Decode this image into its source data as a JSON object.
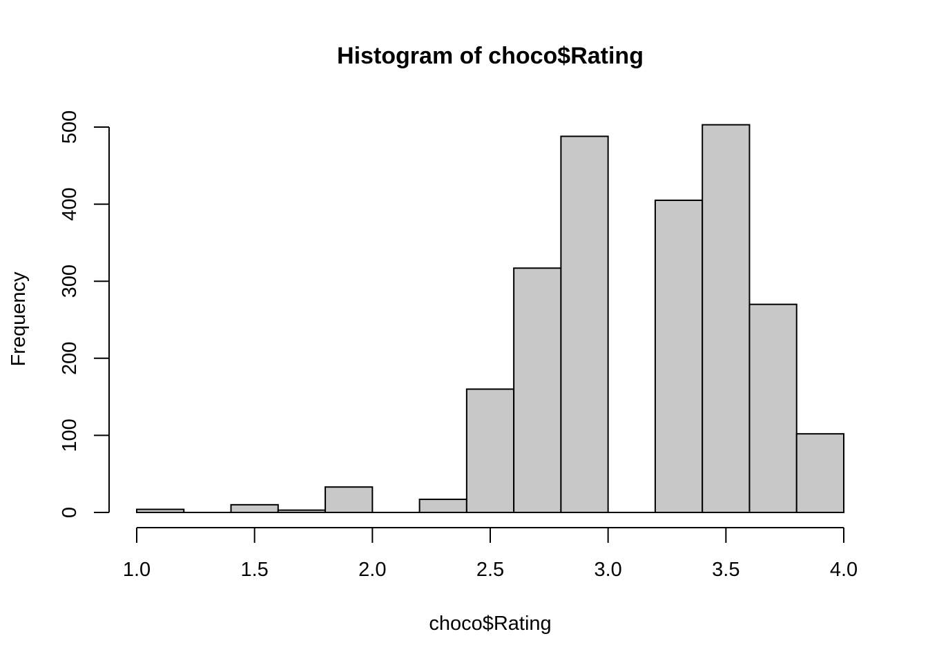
{
  "chart_data": {
    "type": "bar",
    "title": "Histogram of choco$Rating",
    "xlabel": "choco$Rating",
    "ylabel": "Frequency",
    "bins": [
      {
        "start": 1.0,
        "end": 1.2,
        "count": 4
      },
      {
        "start": 1.2,
        "end": 1.4,
        "count": 0
      },
      {
        "start": 1.4,
        "end": 1.6,
        "count": 10
      },
      {
        "start": 1.6,
        "end": 1.8,
        "count": 3
      },
      {
        "start": 1.8,
        "end": 2.0,
        "count": 33
      },
      {
        "start": 2.0,
        "end": 2.2,
        "count": 0
      },
      {
        "start": 2.2,
        "end": 2.4,
        "count": 17
      },
      {
        "start": 2.4,
        "end": 2.6,
        "count": 160
      },
      {
        "start": 2.6,
        "end": 2.8,
        "count": 317
      },
      {
        "start": 2.8,
        "end": 3.0,
        "count": 488
      },
      {
        "start": 3.0,
        "end": 3.2,
        "count": 0
      },
      {
        "start": 3.2,
        "end": 3.4,
        "count": 405
      },
      {
        "start": 3.4,
        "end": 3.6,
        "count": 503
      },
      {
        "start": 3.6,
        "end": 3.8,
        "count": 270
      },
      {
        "start": 3.8,
        "end": 4.0,
        "count": 102
      }
    ],
    "xlim": [
      1.0,
      4.0
    ],
    "ylim": [
      0,
      500
    ],
    "xticks": [
      1.0,
      1.5,
      2.0,
      2.5,
      3.0,
      3.5,
      4.0
    ],
    "xtick_labels": [
      "1.0",
      "1.5",
      "2.0",
      "2.5",
      "3.0",
      "3.5",
      "4.0"
    ],
    "yticks": [
      0,
      100,
      200,
      300,
      400,
      500
    ],
    "ytick_labels": [
      "0",
      "100",
      "200",
      "300",
      "400",
      "500"
    ],
    "grid": false,
    "bar_fill": "#c8c8c8",
    "bar_stroke": "#000000"
  }
}
